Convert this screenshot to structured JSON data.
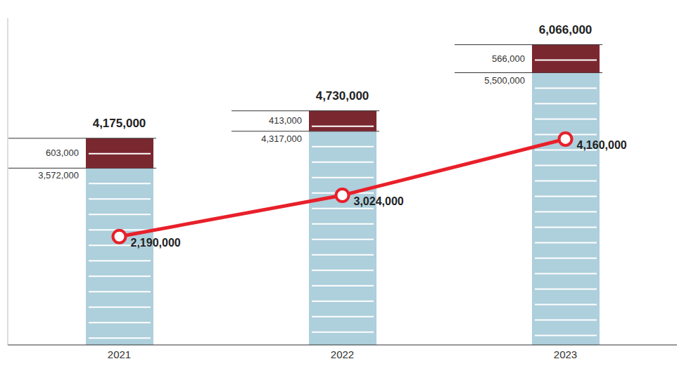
{
  "chart_data": {
    "type": "bar",
    "categories": [
      "2021",
      "2022",
      "2023"
    ],
    "stacked": true,
    "data_labels": true,
    "tick_labels": "x",
    "grid": false,
    "ylim": [
      0,
      6600000
    ],
    "series": [
      {
        "type": "bar",
        "color": "#aecfdc",
        "values": [
          3572000,
          4317000,
          5500000
        ],
        "value_labels": [
          "3,572,000",
          "4,317,000",
          "5,500,000"
        ]
      },
      {
        "type": "bar",
        "color": "#7a2830",
        "values": [
          603000,
          413000,
          566000
        ],
        "value_labels": [
          "603,000",
          "413,000",
          "566,000"
        ]
      },
      {
        "type": "line",
        "color": "#e8202a",
        "marker": "circle",
        "values": [
          2190000,
          3024000,
          4160000
        ],
        "value_labels": [
          "2,190,000",
          "3,024,000",
          "4,160,000"
        ]
      }
    ],
    "totals": {
      "values": [
        4175000,
        4730000,
        6066000
      ],
      "value_labels": [
        "4,175,000",
        "4,730,000",
        "6,066,000"
      ]
    }
  }
}
